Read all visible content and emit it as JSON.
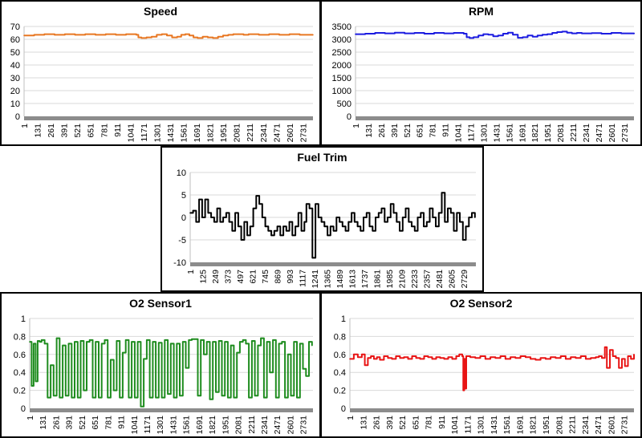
{
  "chart_data": [
    {
      "id": "speed",
      "type": "line",
      "title": "Speed",
      "color": "#E87722",
      "ylim": [
        0,
        70
      ],
      "yticks": [
        0,
        10,
        20,
        30,
        40,
        50,
        60,
        70
      ],
      "xlim": [
        1,
        2830
      ],
      "xticks": [
        1,
        131,
        261,
        391,
        521,
        651,
        781,
        911,
        1041,
        1171,
        1301,
        1431,
        1561,
        1691,
        1821,
        1951,
        2081,
        2211,
        2341,
        2471,
        2601,
        2731
      ],
      "grid": true,
      "x": [
        1,
        100,
        200,
        300,
        400,
        500,
        600,
        700,
        800,
        900,
        1000,
        1100,
        1120,
        1150,
        1200,
        1250,
        1300,
        1350,
        1400,
        1450,
        1500,
        1540,
        1580,
        1620,
        1660,
        1700,
        1750,
        1800,
        1850,
        1900,
        1950,
        2000,
        2050,
        2100,
        2150,
        2200,
        2300,
        2400,
        2500,
        2600,
        2700,
        2830
      ],
      "y": [
        63,
        63.5,
        64,
        63.5,
        64,
        63.5,
        64,
        63.5,
        64,
        63.5,
        64,
        63.5,
        61.5,
        61,
        61.5,
        62,
        63.5,
        64,
        63,
        61.5,
        62,
        63.5,
        64,
        63,
        61.5,
        61,
        62,
        61.5,
        61,
        62,
        63,
        63.5,
        64,
        64,
        63.5,
        64,
        63.5,
        64,
        63.5,
        64,
        63.5,
        63.5
      ]
    },
    {
      "id": "rpm",
      "type": "line",
      "title": "RPM",
      "color": "#1C1CE0",
      "ylim": [
        0,
        3500
      ],
      "yticks": [
        0,
        500,
        1000,
        1500,
        2000,
        2500,
        3000,
        3500
      ],
      "xlim": [
        1,
        2830
      ],
      "xticks": [
        1,
        131,
        261,
        391,
        521,
        651,
        781,
        911,
        1041,
        1171,
        1301,
        1431,
        1561,
        1691,
        1821,
        1951,
        2081,
        2211,
        2341,
        2471,
        2601,
        2731
      ],
      "grid": true,
      "x": [
        1,
        100,
        200,
        300,
        400,
        500,
        600,
        700,
        800,
        900,
        1000,
        1100,
        1130,
        1160,
        1200,
        1250,
        1300,
        1350,
        1400,
        1450,
        1500,
        1550,
        1600,
        1650,
        1700,
        1750,
        1800,
        1850,
        1900,
        1950,
        2000,
        2050,
        2100,
        2150,
        2200,
        2250,
        2300,
        2400,
        2500,
        2600,
        2700,
        2830
      ],
      "y": [
        3200,
        3220,
        3250,
        3230,
        3260,
        3230,
        3250,
        3220,
        3250,
        3230,
        3250,
        3220,
        3080,
        3050,
        3080,
        3150,
        3200,
        3180,
        3120,
        3150,
        3220,
        3260,
        3180,
        3060,
        3080,
        3150,
        3100,
        3150,
        3180,
        3200,
        3250,
        3280,
        3300,
        3260,
        3230,
        3250,
        3230,
        3240,
        3220,
        3250,
        3230,
        3220
      ]
    },
    {
      "id": "fuel",
      "type": "line",
      "title": "Fuel Trim",
      "color": "#000000",
      "ylim": [
        -10,
        10
      ],
      "yticks": [
        -10,
        -5,
        0,
        5,
        10
      ],
      "xlim": [
        1,
        2850
      ],
      "xticks": [
        1,
        125,
        249,
        373,
        497,
        621,
        745,
        869,
        993,
        1117,
        1241,
        1365,
        1489,
        1613,
        1737,
        1861,
        1985,
        2109,
        2233,
        2357,
        2481,
        2605,
        2729
      ],
      "grid": true,
      "x": [
        1,
        30,
        60,
        90,
        120,
        150,
        180,
        210,
        240,
        270,
        300,
        330,
        360,
        390,
        420,
        450,
        480,
        510,
        540,
        570,
        600,
        630,
        660,
        690,
        720,
        750,
        780,
        810,
        840,
        870,
        900,
        930,
        960,
        990,
        1020,
        1050,
        1080,
        1110,
        1140,
        1160,
        1190,
        1220,
        1250,
        1280,
        1310,
        1340,
        1370,
        1400,
        1430,
        1460,
        1490,
        1520,
        1550,
        1580,
        1610,
        1640,
        1670,
        1700,
        1730,
        1760,
        1790,
        1820,
        1850,
        1880,
        1910,
        1940,
        1970,
        2000,
        2030,
        2060,
        2090,
        2120,
        2150,
        2180,
        2210,
        2240,
        2270,
        2300,
        2330,
        2360,
        2390,
        2420,
        2450,
        2480,
        2510,
        2540,
        2570,
        2600,
        2630,
        2660,
        2690,
        2720,
        2750,
        2780,
        2810,
        2840
      ],
      "y": [
        1,
        1.5,
        -1,
        4,
        0,
        4,
        1,
        0,
        -1,
        2,
        -1,
        0,
        1,
        -1,
        -3,
        1,
        -2,
        -5,
        -1,
        -4,
        -2,
        2,
        4.8,
        3,
        0,
        -2,
        -3,
        -4,
        -3,
        -2,
        -4,
        -2,
        -3,
        -1,
        -4,
        -2,
        1,
        -3,
        -1,
        3,
        2,
        -9,
        3,
        0,
        -1,
        -2,
        -4,
        -2,
        -3,
        0,
        -1,
        -2,
        -3,
        -1,
        1,
        -1,
        -2,
        -3,
        0,
        1,
        -2,
        -3,
        0,
        1,
        2,
        -1,
        0,
        3,
        1,
        -1,
        -3,
        0,
        2,
        -1,
        -2,
        -3,
        0,
        1,
        -2,
        -1,
        2,
        0,
        -2,
        1,
        5.5,
        -1,
        2,
        1,
        -3,
        1,
        -1,
        -5,
        -2,
        0,
        1,
        0
      ]
    },
    {
      "id": "o2a",
      "type": "line",
      "title": "O2 Sensor1",
      "color": "#1E8C1E",
      "ylim": [
        0,
        1
      ],
      "yticks": [
        0,
        0.2,
        0.4,
        0.6,
        0.8,
        1
      ],
      "xlim": [
        1,
        2830
      ],
      "xticks": [
        1,
        131,
        261,
        391,
        521,
        651,
        781,
        911,
        1041,
        1171,
        1301,
        1431,
        1561,
        1691,
        1821,
        1951,
        2081,
        2211,
        2341,
        2471,
        2601,
        2731
      ],
      "grid": true,
      "x": [
        1,
        20,
        40,
        60,
        80,
        100,
        120,
        150,
        180,
        210,
        240,
        270,
        300,
        330,
        360,
        390,
        420,
        450,
        480,
        510,
        540,
        570,
        600,
        630,
        660,
        690,
        720,
        750,
        780,
        810,
        840,
        870,
        900,
        930,
        960,
        990,
        1020,
        1050,
        1080,
        1110,
        1140,
        1170,
        1200,
        1230,
        1260,
        1290,
        1320,
        1350,
        1380,
        1410,
        1440,
        1470,
        1500,
        1530,
        1560,
        1590,
        1620,
        1650,
        1680,
        1710,
        1740,
        1770,
        1800,
        1830,
        1860,
        1890,
        1920,
        1950,
        1980,
        2010,
        2040,
        2070,
        2100,
        2130,
        2160,
        2190,
        2220,
        2250,
        2280,
        2310,
        2340,
        2370,
        2400,
        2430,
        2460,
        2490,
        2520,
        2550,
        2580,
        2610,
        2640,
        2670,
        2700,
        2730,
        2760,
        2790,
        2820
      ],
      "y": [
        0.74,
        0.25,
        0.72,
        0.3,
        0.75,
        0.74,
        0.76,
        0.72,
        0.12,
        0.48,
        0.14,
        0.78,
        0.12,
        0.7,
        0.14,
        0.72,
        0.12,
        0.74,
        0.12,
        0.75,
        0.2,
        0.74,
        0.76,
        0.12,
        0.74,
        0.12,
        0.72,
        0.76,
        0.12,
        0.54,
        0.2,
        0.75,
        0.12,
        0.62,
        0.76,
        0.12,
        0.74,
        0.12,
        0.74,
        0.02,
        0.55,
        0.76,
        0.12,
        0.74,
        0.12,
        0.73,
        0.12,
        0.76,
        0.16,
        0.72,
        0.12,
        0.72,
        0.14,
        0.74,
        0.45,
        0.76,
        0.77,
        0.77,
        0.14,
        0.76,
        0.6,
        0.74,
        0.1,
        0.74,
        0.18,
        0.75,
        0.14,
        0.74,
        0.12,
        0.7,
        0.12,
        0.62,
        0.74,
        0.76,
        0.72,
        0.12,
        0.75,
        0.14,
        0.7,
        0.78,
        0.12,
        0.74,
        0.4,
        0.76,
        0.12,
        0.72,
        0.74,
        0.12,
        0.6,
        0.14,
        0.74,
        0.12,
        0.72,
        0.44,
        0.36,
        0.74,
        0.7
      ]
    },
    {
      "id": "o2b",
      "type": "line",
      "title": "O2 Sensor2",
      "color": "#E81414",
      "ylim": [
        0,
        1
      ],
      "yticks": [
        0,
        0.2,
        0.4,
        0.6,
        0.8,
        1
      ],
      "xlim": [
        1,
        2830
      ],
      "xticks": [
        1,
        131,
        261,
        391,
        521,
        651,
        781,
        911,
        1041,
        1171,
        1301,
        1431,
        1561,
        1691,
        1821,
        1951,
        2081,
        2211,
        2341,
        2471,
        2601,
        2731
      ],
      "grid": true,
      "x": [
        1,
        40,
        80,
        120,
        150,
        180,
        210,
        240,
        270,
        300,
        340,
        380,
        420,
        460,
        500,
        540,
        580,
        620,
        660,
        700,
        740,
        780,
        820,
        860,
        900,
        940,
        980,
        1020,
        1060,
        1090,
        1120,
        1130,
        1140,
        1150,
        1160,
        1200,
        1250,
        1300,
        1350,
        1400,
        1450,
        1500,
        1550,
        1600,
        1650,
        1700,
        1750,
        1800,
        1850,
        1900,
        1950,
        2000,
        2050,
        2100,
        2150,
        2200,
        2250,
        2300,
        2350,
        2400,
        2450,
        2480,
        2510,
        2540,
        2560,
        2590,
        2620,
        2650,
        2680,
        2710,
        2740,
        2770,
        2800,
        2830
      ],
      "y": [
        0.55,
        0.6,
        0.57,
        0.6,
        0.48,
        0.56,
        0.58,
        0.55,
        0.57,
        0.54,
        0.58,
        0.56,
        0.55,
        0.58,
        0.56,
        0.57,
        0.55,
        0.58,
        0.56,
        0.55,
        0.58,
        0.57,
        0.55,
        0.57,
        0.56,
        0.55,
        0.57,
        0.55,
        0.58,
        0.6,
        0.58,
        0.2,
        0.55,
        0.22,
        0.58,
        0.57,
        0.56,
        0.58,
        0.55,
        0.57,
        0.56,
        0.58,
        0.55,
        0.57,
        0.56,
        0.58,
        0.57,
        0.55,
        0.54,
        0.56,
        0.55,
        0.57,
        0.56,
        0.58,
        0.55,
        0.57,
        0.56,
        0.58,
        0.55,
        0.56,
        0.57,
        0.58,
        0.56,
        0.68,
        0.45,
        0.65,
        0.58,
        0.56,
        0.45,
        0.55,
        0.47,
        0.58,
        0.55,
        0.6
      ]
    }
  ]
}
